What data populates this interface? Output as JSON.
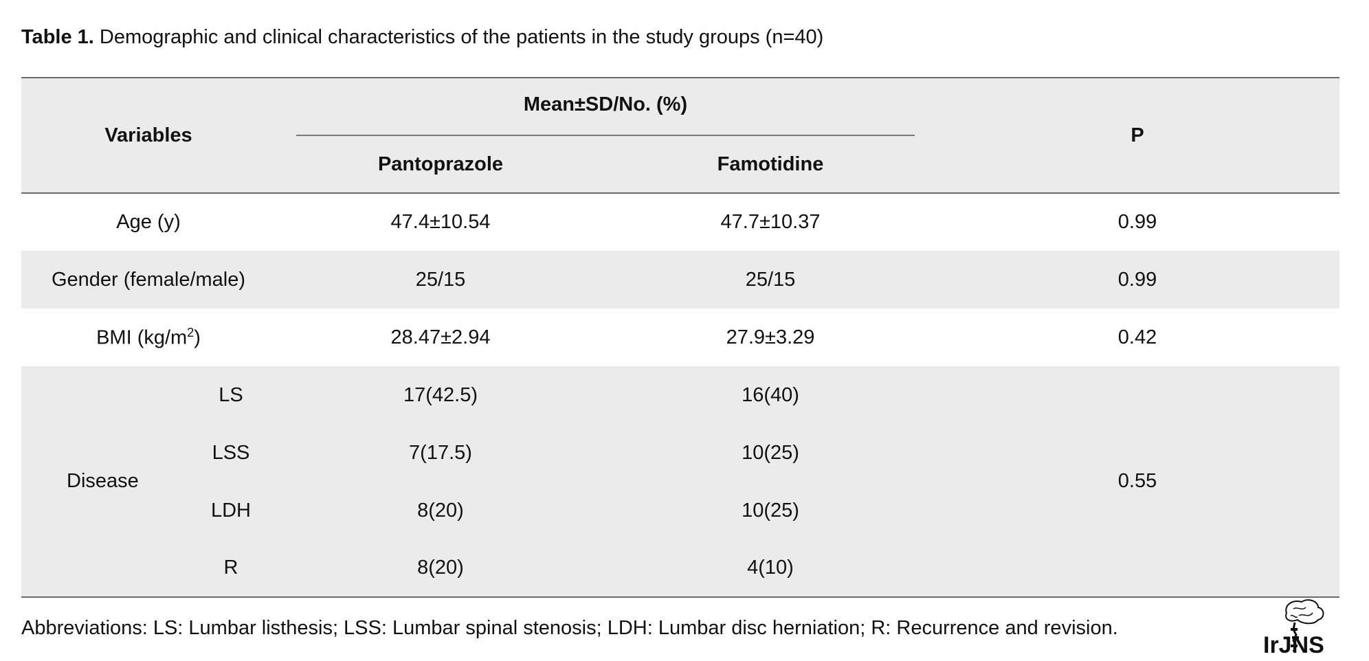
{
  "caption": {
    "label": "Table 1.",
    "text": " Demographic and clinical characteristics of the patients in the study groups (n=40)"
  },
  "table": {
    "headers": {
      "variables": "Variables",
      "group": "Mean±SD/No. (%)",
      "col1": "Pantoprazole",
      "col2": "Famotidine",
      "p": "P"
    },
    "rows": [
      {
        "variable": "Age (y)",
        "col1": "47.4±10.54",
        "col2": "47.7±10.37",
        "p": "0.99"
      },
      {
        "variable": "Gender (female/male)",
        "col1": "25/15",
        "col2": "25/15",
        "p": "0.99"
      },
      {
        "variable_prefix": "BMI (kg/m",
        "variable_sup": "2",
        "variable_suffix": ")",
        "col1": "28.47±2.94",
        "col2": "27.9±3.29",
        "p": "0.42"
      }
    ],
    "disease": {
      "label": "Disease",
      "p": "0.55",
      "items": [
        {
          "sub": "LS",
          "col1": "17(42.5)",
          "col2": "16(40)"
        },
        {
          "sub": "LSS",
          "col1": "7(17.5)",
          "col2": "10(25)"
        },
        {
          "sub": "LDH",
          "col1": "8(20)",
          "col2": "10(25)"
        },
        {
          "sub": "R",
          "col1": "8(20)",
          "col2": "4(10)"
        }
      ]
    }
  },
  "footnote": "Abbreviations: LS: Lumbar listhesis; LSS: Lumbar spinal stenosis; LDH: Lumbar disc herniation; R: Recurrence and revision.",
  "logo": {
    "icon": "brain-spine-logo-icon",
    "text": "IrJNS"
  },
  "colors": {
    "header_bg": "#ebebeb",
    "rule": "#6b6b6b",
    "text": "#111111"
  }
}
